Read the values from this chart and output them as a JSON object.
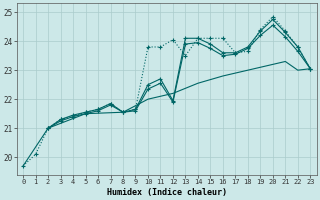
{
  "xlabel": "Humidex (Indice chaleur)",
  "ylabel": "",
  "background_color": "#cce8e8",
  "grid_color": "#aacccc",
  "line_color": "#006666",
  "xlim": [
    -0.5,
    23.5
  ],
  "ylim": [
    19.4,
    25.3
  ],
  "yticks": [
    20,
    21,
    22,
    23,
    24,
    25
  ],
  "xticks": [
    0,
    1,
    2,
    3,
    4,
    5,
    6,
    7,
    8,
    9,
    10,
    11,
    12,
    13,
    14,
    15,
    16,
    17,
    18,
    19,
    20,
    21,
    22,
    23
  ],
  "series": [
    {
      "x": [
        0,
        1,
        2,
        3,
        4,
        5,
        6,
        7,
        8,
        9,
        10,
        11,
        12,
        13,
        14,
        15,
        16,
        17,
        18,
        19,
        20,
        21,
        22,
        23
      ],
      "y": [
        19.7,
        20.1,
        21.0,
        21.3,
        21.4,
        21.55,
        21.65,
        21.85,
        21.55,
        21.65,
        23.8,
        23.8,
        24.05,
        23.5,
        24.1,
        24.1,
        24.1,
        23.6,
        23.65,
        24.4,
        24.85,
        24.35,
        23.8,
        23.05
      ],
      "style": "dotted",
      "marker": "+"
    },
    {
      "x": [
        2,
        3,
        4,
        5,
        6,
        7,
        8,
        9,
        10,
        11,
        12,
        13,
        14,
        15,
        16,
        17,
        18,
        19,
        20,
        21,
        22,
        23
      ],
      "y": [
        21.0,
        21.3,
        21.45,
        21.55,
        21.65,
        21.85,
        21.55,
        21.65,
        22.5,
        22.7,
        21.95,
        24.1,
        24.1,
        23.9,
        23.6,
        23.6,
        23.8,
        24.35,
        24.75,
        24.3,
        23.8,
        23.05
      ],
      "style": "solid",
      "marker": "+"
    },
    {
      "x": [
        2,
        3,
        4,
        5,
        6,
        7,
        8,
        9,
        10,
        11,
        12,
        13,
        14,
        15,
        16,
        17,
        18,
        19,
        20,
        21,
        22,
        23
      ],
      "y": [
        21.0,
        21.25,
        21.4,
        21.5,
        21.6,
        21.8,
        21.55,
        21.6,
        22.35,
        22.55,
        21.9,
        23.9,
        23.95,
        23.75,
        23.5,
        23.55,
        23.75,
        24.2,
        24.55,
        24.15,
        23.65,
        23.05
      ],
      "style": "solid",
      "marker": "+"
    },
    {
      "x": [
        0,
        2,
        5,
        8,
        10,
        12,
        14,
        16,
        18,
        20,
        21,
        22,
        23
      ],
      "y": [
        19.7,
        21.0,
        21.5,
        21.55,
        22.0,
        22.2,
        22.55,
        22.8,
        23.0,
        23.2,
        23.3,
        23.0,
        23.05
      ],
      "style": "solid",
      "marker": null
    }
  ]
}
